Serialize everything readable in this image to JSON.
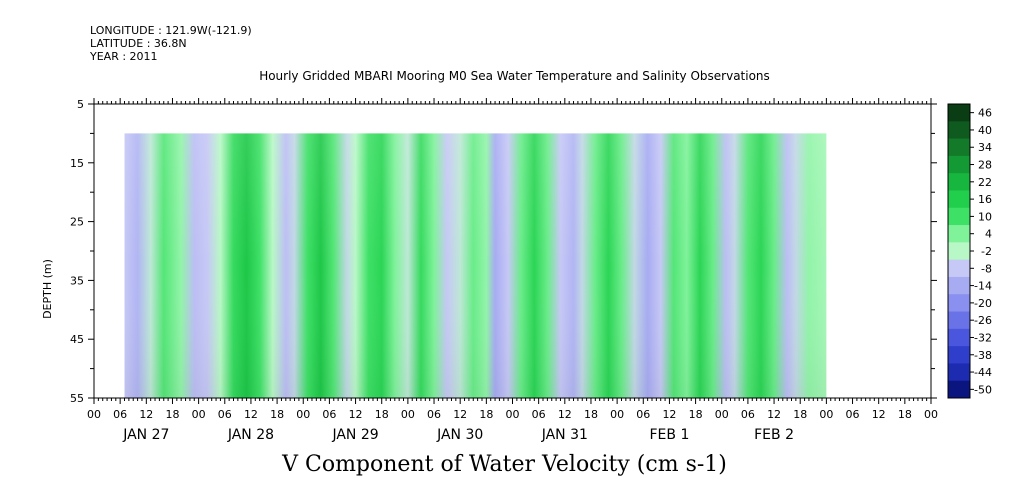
{
  "meta": {
    "longitude": "LONGITUDE : 121.9W(-121.9)",
    "latitude": "LATITUDE : 36.8N",
    "year": "YEAR : 2011"
  },
  "chart_data": {
    "type": "heatmap",
    "title": "Hourly Gridded MBARI Mooring M0 Sea Water Temperature and Salinity Observations",
    "xlabel": "V Component of Water Velocity (cm s-1)",
    "ylabel": "DEPTH (m)",
    "ylim": [
      55,
      5
    ],
    "y_ticks": [
      "5",
      "15",
      "25",
      "35",
      "45",
      "55"
    ],
    "x_hour_ticks": [
      "00",
      "06",
      "12",
      "18",
      "00",
      "06",
      "12",
      "18",
      "00",
      "06",
      "12",
      "18",
      "00",
      "06",
      "12",
      "18",
      "00",
      "06",
      "12",
      "18",
      "00",
      "06",
      "12",
      "18",
      "00",
      "06",
      "12",
      "18",
      "00",
      "06",
      "12",
      "18",
      "00"
    ],
    "day_labels": [
      "JAN 27",
      "JAN 28",
      "JAN 29",
      "JAN 30",
      "JAN 31",
      "FEB  1",
      "FEB  2"
    ],
    "data_start_hour": 7,
    "data_top_depth": 10,
    "colorbar": {
      "labels": [
        "46",
        "40",
        "34",
        "28",
        "22",
        "16",
        "10",
        "4",
        "-2",
        "-8",
        "-14",
        "-20",
        "-26",
        "-32",
        "-38",
        "-44",
        "-50"
      ],
      "colors": [
        "#0a3d14",
        "#0f5a1e",
        "#127a28",
        "#139a34",
        "#17b63e",
        "#22cf4d",
        "#3ee066",
        "#7ff29a",
        "#b8f8c6",
        "#c6c8f5",
        "#a7abf2",
        "#8a90ef",
        "#6a72e8",
        "#4a56de",
        "#2f3fcc",
        "#1d2bb0",
        "#0b1580"
      ]
    },
    "bands": [
      {
        "hour": 7,
        "v": -8
      },
      {
        "hour": 10,
        "v": -12
      },
      {
        "hour": 13,
        "v": -4
      },
      {
        "hour": 16,
        "v": 8
      },
      {
        "hour": 20,
        "v": 2
      },
      {
        "hour": 23,
        "v": -10
      },
      {
        "hour": 26,
        "v": -8
      },
      {
        "hour": 29,
        "v": -2
      },
      {
        "hour": 32,
        "v": 12
      },
      {
        "hour": 35,
        "v": 18
      },
      {
        "hour": 38,
        "v": 10
      },
      {
        "hour": 41,
        "v": -2
      },
      {
        "hour": 44,
        "v": -10
      },
      {
        "hour": 46,
        "v": -6
      },
      {
        "hour": 49,
        "v": 10
      },
      {
        "hour": 52,
        "v": 18
      },
      {
        "hour": 55,
        "v": 8
      },
      {
        "hour": 58,
        "v": -6
      },
      {
        "hour": 60,
        "v": -2
      },
      {
        "hour": 63,
        "v": 10
      },
      {
        "hour": 66,
        "v": 14
      },
      {
        "hour": 69,
        "v": 4
      },
      {
        "hour": 72,
        "v": -4
      },
      {
        "hour": 75,
        "v": 12
      },
      {
        "hour": 78,
        "v": 4
      },
      {
        "hour": 81,
        "v": -8
      },
      {
        "hour": 84,
        "v": -4
      },
      {
        "hour": 87,
        "v": 6
      },
      {
        "hour": 90,
        "v": 2
      },
      {
        "hour": 92,
        "v": -14
      },
      {
        "hour": 95,
        "v": -8
      },
      {
        "hour": 98,
        "v": 6
      },
      {
        "hour": 101,
        "v": 14
      },
      {
        "hour": 104,
        "v": 6
      },
      {
        "hour": 107,
        "v": -8
      },
      {
        "hour": 110,
        "v": -12
      },
      {
        "hour": 112,
        "v": -6
      },
      {
        "hour": 115,
        "v": 6
      },
      {
        "hour": 118,
        "v": 14
      },
      {
        "hour": 121,
        "v": 6
      },
      {
        "hour": 124,
        "v": -6
      },
      {
        "hour": 127,
        "v": -14
      },
      {
        "hour": 130,
        "v": -8
      },
      {
        "hour": 133,
        "v": 8
      },
      {
        "hour": 136,
        "v": 4
      },
      {
        "hour": 139,
        "v": 14
      },
      {
        "hour": 142,
        "v": 6
      },
      {
        "hour": 145,
        "v": -10
      },
      {
        "hour": 147,
        "v": -6
      },
      {
        "hour": 150,
        "v": 8
      },
      {
        "hour": 153,
        "v": 14
      },
      {
        "hour": 156,
        "v": 6
      },
      {
        "hour": 159,
        "v": -10
      },
      {
        "hour": 161,
        "v": -6
      },
      {
        "hour": 164,
        "v": 2
      },
      {
        "hour": 168,
        "v": 0
      }
    ]
  }
}
